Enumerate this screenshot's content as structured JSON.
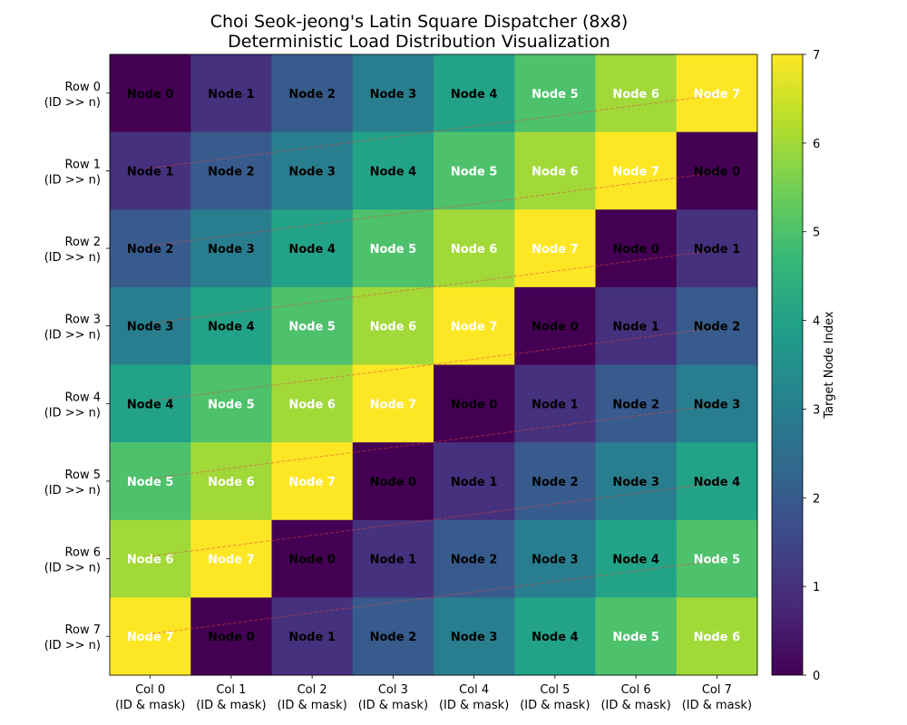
{
  "chart_data": {
    "type": "heatmap",
    "title": "Choi Seok-jeong's Latin Square Dispatcher (8x8)",
    "subtitle": "Deterministic Load Distribution Visualization",
    "xlabel": "",
    "ylabel": "",
    "row_labels": [
      [
        "Row 0",
        "(ID >> n)"
      ],
      [
        "Row 1",
        "(ID >> n)"
      ],
      [
        "Row 2",
        "(ID >> n)"
      ],
      [
        "Row 3",
        "(ID >> n)"
      ],
      [
        "Row 4",
        "(ID >> n)"
      ],
      [
        "Row 5",
        "(ID >> n)"
      ],
      [
        "Row 6",
        "(ID >> n)"
      ],
      [
        "Row 7",
        "(ID >> n)"
      ]
    ],
    "col_labels": [
      [
        "Col 0",
        "(ID & mask)"
      ],
      [
        "Col 1",
        "(ID & mask)"
      ],
      [
        "Col 2",
        "(ID & mask)"
      ],
      [
        "Col 3",
        "(ID & mask)"
      ],
      [
        "Col 4",
        "(ID & mask)"
      ],
      [
        "Col 5",
        "(ID & mask)"
      ],
      [
        "Col 6",
        "(ID & mask)"
      ],
      [
        "Col 7",
        "(ID & mask)"
      ]
    ],
    "values": [
      [
        0,
        1,
        2,
        3,
        4,
        5,
        6,
        7
      ],
      [
        1,
        2,
        3,
        4,
        5,
        6,
        7,
        0
      ],
      [
        2,
        3,
        4,
        5,
        6,
        7,
        0,
        1
      ],
      [
        3,
        4,
        5,
        6,
        7,
        0,
        1,
        2
      ],
      [
        4,
        5,
        6,
        7,
        0,
        1,
        2,
        3
      ],
      [
        5,
        6,
        7,
        0,
        1,
        2,
        3,
        4
      ],
      [
        6,
        7,
        0,
        1,
        2,
        3,
        4,
        5
      ],
      [
        7,
        0,
        1,
        2,
        3,
        4,
        5,
        6
      ]
    ],
    "cell_label_prefix": "Node ",
    "label_text_color_threshold": 5,
    "label_colors": {
      "dark": "#000000",
      "light": "#ffffff"
    },
    "colormap": "viridis",
    "colormap_stops": [
      "#440154",
      "#482878",
      "#3e4989",
      "#31688e",
      "#26828e",
      "#1f9e89",
      "#35b779",
      "#6ece58",
      "#b5de2b",
      "#fde725"
    ],
    "vmin": 0,
    "vmax": 7,
    "colorbar": {
      "label": "Target Node Index",
      "ticks": [
        0,
        1,
        2,
        3,
        4,
        5,
        6,
        7
      ]
    },
    "overlay_lines": {
      "description": "dashed lines connecting wrap-around from row r col 7 to row r+1 col 0",
      "color": "#e8453c",
      "segments": [
        {
          "from": [
            7,
            0
          ],
          "to": [
            0,
            1
          ]
        },
        {
          "from": [
            7,
            1
          ],
          "to": [
            0,
            2
          ]
        },
        {
          "from": [
            7,
            2
          ],
          "to": [
            0,
            3
          ]
        },
        {
          "from": [
            7,
            3
          ],
          "to": [
            0,
            4
          ]
        },
        {
          "from": [
            7,
            4
          ],
          "to": [
            0,
            5
          ]
        },
        {
          "from": [
            7,
            5
          ],
          "to": [
            0,
            6
          ]
        },
        {
          "from": [
            7,
            6
          ],
          "to": [
            0,
            7
          ]
        }
      ]
    },
    "grid": false,
    "legend": "colorbar-right"
  }
}
